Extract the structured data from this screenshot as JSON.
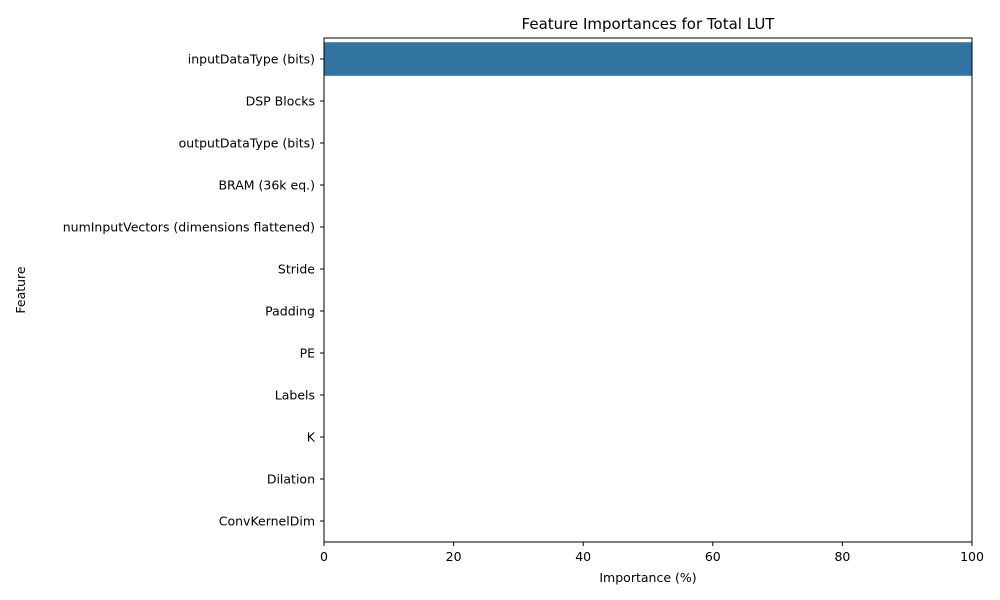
{
  "chart_data": {
    "type": "bar",
    "orientation": "horizontal",
    "title": "Feature Importances for Total LUT",
    "xlabel": "Importance (%)",
    "ylabel": "Feature",
    "xlim": [
      0,
      100
    ],
    "xticks": [
      0,
      20,
      40,
      60,
      80,
      100
    ],
    "categories": [
      "inputDataType (bits)",
      "DSP Blocks",
      "outputDataType (bits)",
      "BRAM (36k eq.)",
      "numInputVectors (dimensions flattened)",
      "Stride",
      "Padding",
      "PE",
      "Labels",
      "K",
      "Dilation",
      "ConvKernelDim"
    ],
    "values": [
      100,
      0,
      0,
      0,
      0,
      0,
      0,
      0,
      0,
      0,
      0,
      0
    ],
    "bar_color": "#3274a1",
    "grid": false
  }
}
